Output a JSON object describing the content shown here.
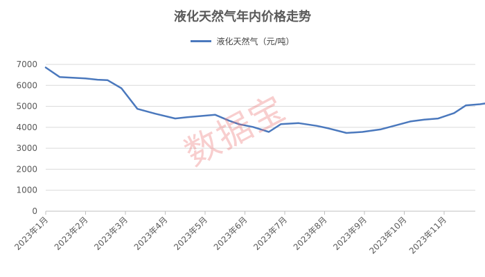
{
  "chart_data": {
    "type": "line",
    "title": "液化天然气年内价格走势",
    "xlabel": "",
    "ylabel": "",
    "ylim": [
      0,
      7000
    ],
    "yticks": [
      0,
      1000,
      2000,
      3000,
      4000,
      5000,
      6000,
      7000
    ],
    "categories": [
      "2023年1月",
      "2023年2月",
      "2023年3月",
      "2023年4月",
      "2023年5月",
      "2023年6月",
      "2023年7月",
      "2023年8月",
      "2023年9月",
      "2023年10月",
      "2023年11月"
    ],
    "legend_position": "top",
    "grid": true,
    "series": [
      {
        "name": "液化天然气（元/吨）",
        "color": "#4a78bd",
        "x": [
          0,
          0.35,
          1,
          1.3,
          1.55,
          1.9,
          2.3,
          2.75,
          3.25,
          3.55,
          4.25,
          4.6,
          4.85,
          5.2,
          5.6,
          5.9,
          6.35,
          6.8,
          7.1,
          7.55,
          7.95,
          8.4,
          8.8,
          9.15,
          9.5,
          9.85,
          10.25,
          10.55,
          10.9,
          11.25
        ],
        "values": [
          6850,
          6400,
          6330,
          6270,
          6250,
          5860,
          4880,
          4650,
          4420,
          4480,
          4600,
          4320,
          4150,
          4020,
          3780,
          4150,
          4200,
          4070,
          3950,
          3730,
          3780,
          3900,
          4100,
          4280,
          4370,
          4420,
          4680,
          5050,
          5100,
          5200
        ]
      }
    ]
  },
  "watermark": "数据宝"
}
